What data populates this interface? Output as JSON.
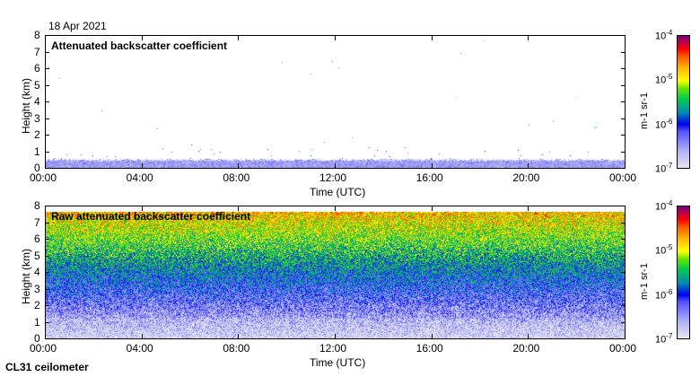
{
  "date": "18 Apr 2021",
  "footer": "CL31 ceilometer",
  "colors": {
    "low": "#e6e6f0",
    "high": "#780078"
  },
  "chart_data": [
    {
      "type": "heatmap",
      "title": "Attenuated backscatter coefficient",
      "xlabel": "Time (UTC)",
      "ylabel": "Height (km)",
      "xlim": [
        0,
        24
      ],
      "ylim": [
        0,
        8
      ],
      "xticks": [
        "00:00",
        "04:00",
        "08:00",
        "12:00",
        "16:00",
        "20:00",
        "00:00"
      ],
      "yticks": [
        "0",
        "1",
        "2",
        "3",
        "4",
        "5",
        "6",
        "7",
        "8"
      ],
      "colorbar": {
        "label": "m-1 sr-1",
        "scale": "log",
        "range": [
          1e-07,
          0.0001
        ],
        "ticks": [
          "10",
          "10",
          "10",
          "10"
        ],
        "exponents": [
          "-4",
          "-5",
          "-6",
          "-7"
        ]
      },
      "description_values": {
        "boundary_layer_top_km": 0.5,
        "typical_low_value": 1.5e-07,
        "sparse_points_max_value": 5e-06
      }
    },
    {
      "type": "heatmap",
      "title": "Raw attenuated backscatter coefficient",
      "xlabel": "Time (UTC)",
      "ylabel": "Height (km)",
      "xlim": [
        0,
        24
      ],
      "ylim": [
        0,
        8
      ],
      "xticks": [
        "00:00",
        "04:00",
        "08:00",
        "12:00",
        "16:00",
        "20:00",
        "00:00"
      ],
      "yticks": [
        "0",
        "1",
        "2",
        "3",
        "4",
        "5",
        "6",
        "7",
        "8"
      ],
      "colorbar": {
        "label": "m-1 sr-1",
        "scale": "log",
        "range": [
          1e-07,
          0.0001
        ],
        "ticks": [
          "10",
          "10",
          "10",
          "10"
        ],
        "exponents": [
          "-4",
          "-5",
          "-6",
          "-7"
        ]
      },
      "description_values": {
        "data_top_km": 7.7,
        "value_at_0km": 1e-07,
        "value_at_4km": 1e-06,
        "value_at_7km": 1e-05
      }
    }
  ]
}
